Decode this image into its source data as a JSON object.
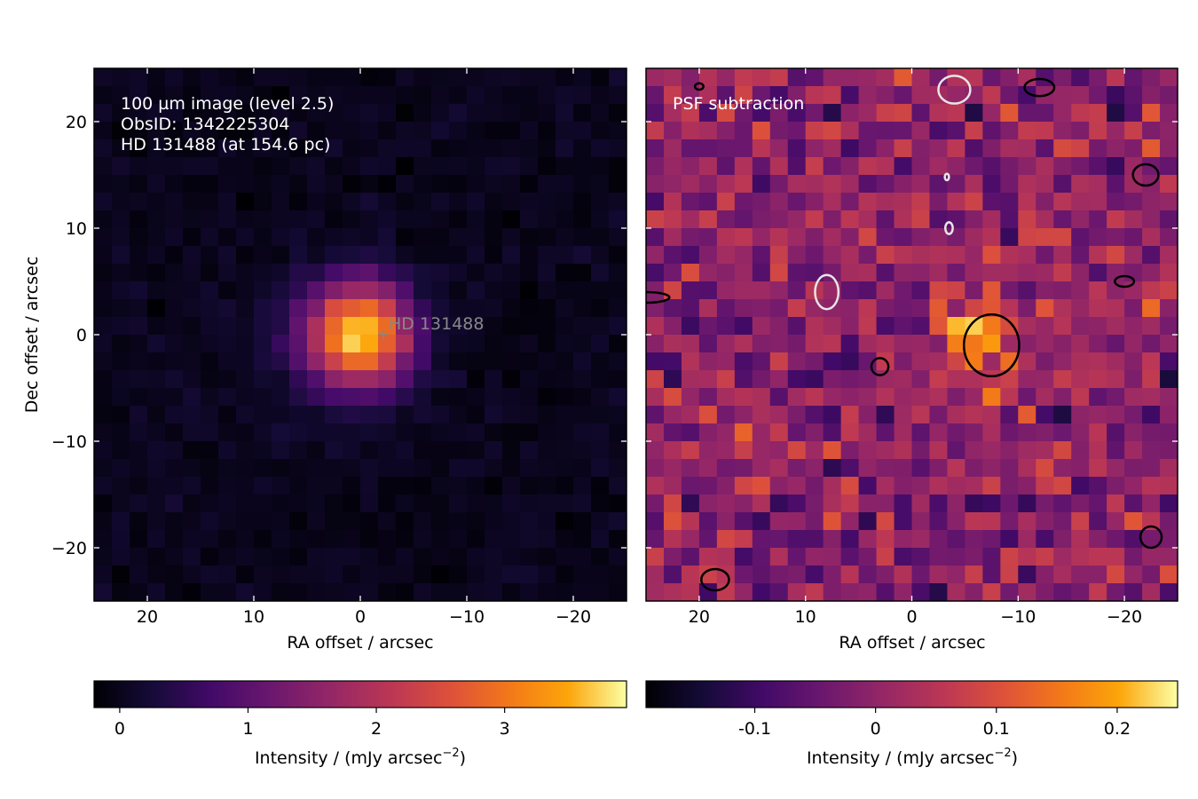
{
  "chart_data": [
    {
      "type": "heatmap",
      "panel": "left",
      "colormap": "inferno",
      "annotation_lines": [
        "100 µm image (level 2.5)",
        "ObsID: 1342225304",
        "HD 131488 (at 154.6 pc)"
      ],
      "annotation_color": "#ffffff",
      "star_label": "HD 131488",
      "star_marker": "+",
      "star_position": {
        "x": -2.2,
        "y": 0.3
      },
      "star_color": "#888888",
      "xlabel": "RA offset / arcsec",
      "ylabel": "Dec offset / arcsec",
      "xlim": [
        25,
        -25
      ],
      "ylim": [
        -25,
        25
      ],
      "xticks": [
        20,
        10,
        0,
        -10,
        -20
      ],
      "xtick_labels": [
        "20",
        "10",
        "0",
        "−10",
        "−20"
      ],
      "yticks": [
        20,
        10,
        0,
        -10,
        -20
      ],
      "ytick_labels": [
        "20",
        "10",
        "0",
        "−10",
        "−20"
      ],
      "source": {
        "x": 0,
        "y": 0,
        "peak": 3.7,
        "sigma_arcsec": 3.4
      },
      "noise_level": 0.12,
      "colorbar": {
        "label_main": "Intensity / (mJy arcsec",
        "label_exp": "−2",
        "label_close": ")",
        "range": [
          -0.2,
          3.95
        ],
        "ticks": [
          0,
          1,
          2,
          3
        ],
        "tick_labels": [
          "0",
          "1",
          "2",
          "3"
        ]
      }
    },
    {
      "type": "heatmap",
      "panel": "right",
      "colormap": "inferno",
      "annotation_lines": [
        "PSF subtraction"
      ],
      "annotation_color": "#ffffff",
      "xlabel": "RA offset / arcsec",
      "xlim": [
        25,
        -25
      ],
      "ylim": [
        -25,
        25
      ],
      "xticks": [
        20,
        10,
        0,
        -10,
        -20
      ],
      "xtick_labels": [
        "20",
        "10",
        "0",
        "−10",
        "−20"
      ],
      "yticks": [
        20,
        10,
        0,
        -10,
        -20
      ],
      "residual_peak": {
        "x": -6.3,
        "y": 0,
        "value": 0.24
      },
      "positive_contours": [
        {
          "x": -7.5,
          "y": -1.0,
          "rx": 2.6,
          "ry": 2.9
        },
        {
          "x": -12.0,
          "y": 23.2,
          "rx": 1.4,
          "ry": 0.8
        },
        {
          "x": -22.0,
          "y": 15.0,
          "rx": 1.2,
          "ry": 1.0
        },
        {
          "x": -20.0,
          "y": 5.0,
          "rx": 0.9,
          "ry": 0.5
        },
        {
          "x": 18.5,
          "y": -23.0,
          "rx": 1.3,
          "ry": 1.0
        },
        {
          "x": -22.5,
          "y": -19.0,
          "rx": 1.0,
          "ry": 1.0
        },
        {
          "x": 3.0,
          "y": -3.0,
          "rx": 0.8,
          "ry": 0.8
        },
        {
          "x": 25.0,
          "y": 3.5,
          "rx": 2.2,
          "ry": 0.5
        },
        {
          "x": 20.0,
          "y": 23.3,
          "rx": 0.4,
          "ry": 0.3
        }
      ],
      "negative_contours": [
        {
          "x": -4.0,
          "y": 23.0,
          "rx": 1.5,
          "ry": 1.3
        },
        {
          "x": 8.0,
          "y": 4.0,
          "rx": 1.1,
          "ry": 1.6
        },
        {
          "x": -3.5,
          "y": 10.0,
          "rx": 0.35,
          "ry": 0.55
        },
        {
          "x": -3.3,
          "y": 14.8,
          "rx": 0.2,
          "ry": 0.3
        }
      ],
      "noise_level": 0.075,
      "colorbar": {
        "label_main": "Intensity / (mJy arcsec",
        "label_exp": "−2",
        "label_close": ")",
        "range": [
          -0.19,
          0.25
        ],
        "ticks": [
          -0.1,
          0,
          0.1,
          0.2
        ],
        "tick_labels": [
          "-0.1",
          "0",
          "0.1",
          "0.2"
        ]
      }
    }
  ]
}
